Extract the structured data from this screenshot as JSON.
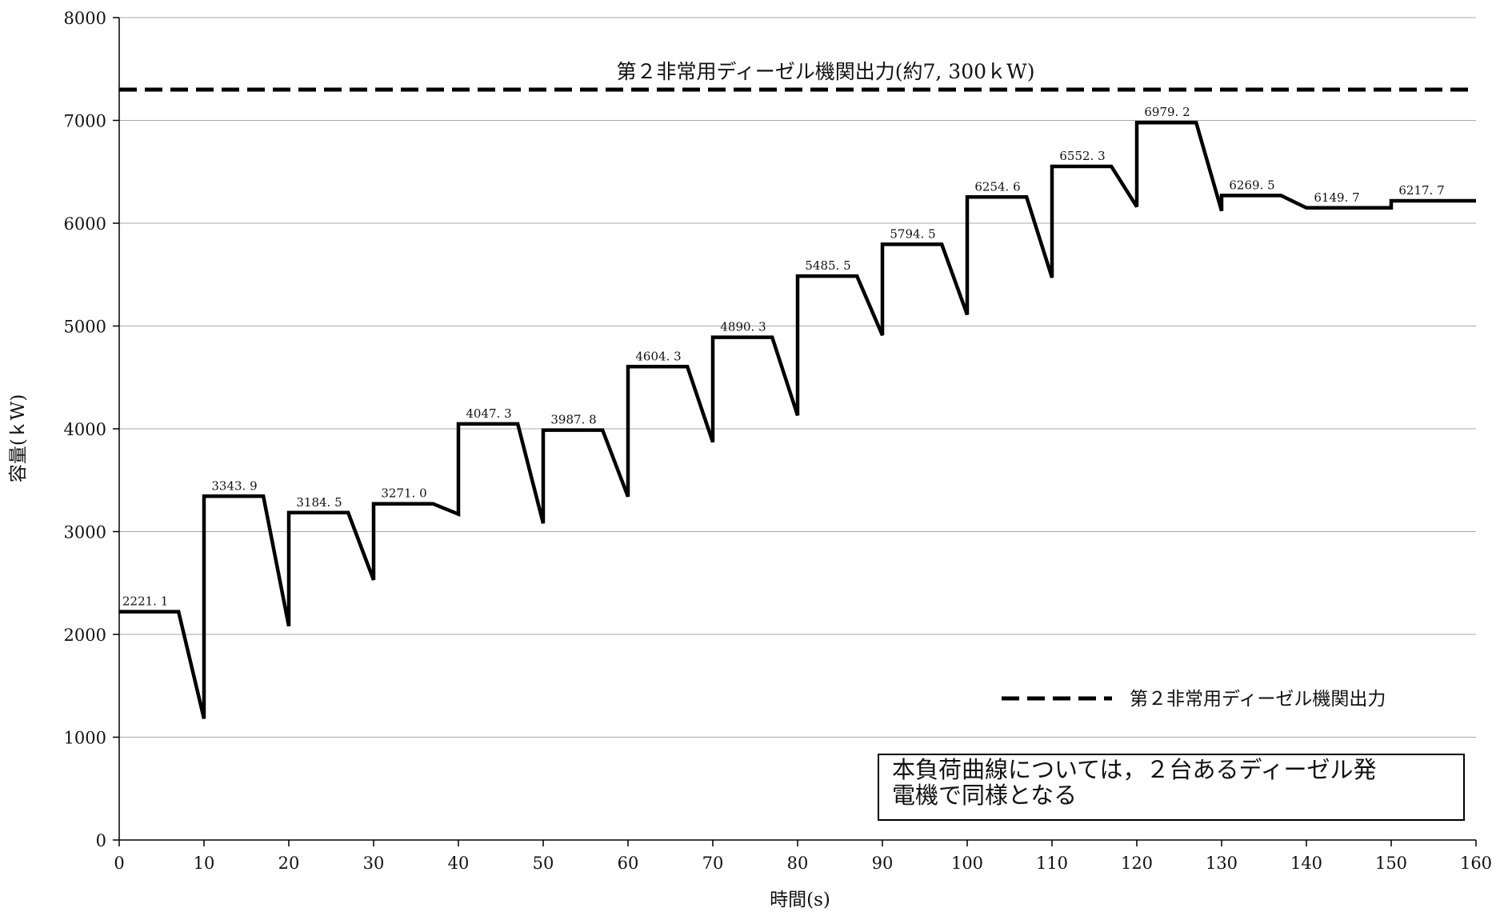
{
  "chart_data": {
    "type": "line",
    "xlabel": "時間(s)",
    "ylabel": "容量(ｋW)",
    "xlim": [
      0,
      160
    ],
    "ylim": [
      0,
      8000
    ],
    "x_ticks": [
      "0",
      "10",
      "20",
      "30",
      "40",
      "50",
      "60",
      "70",
      "80",
      "90",
      "100",
      "110",
      "120",
      "130",
      "140",
      "150",
      "160"
    ],
    "y_ticks": [
      "0",
      "1000",
      "2000",
      "3000",
      "4000",
      "5000",
      "6000",
      "7000",
      "8000"
    ],
    "grid": "horizontal",
    "series": [
      {
        "color": "#000000",
        "points": [
          [
            0,
            2221.1
          ],
          [
            7,
            2221.1
          ],
          [
            10,
            1180
          ],
          [
            10,
            3343.9
          ],
          [
            17,
            3343.9
          ],
          [
            20,
            2080
          ],
          [
            20,
            3184.5
          ],
          [
            27,
            3184.5
          ],
          [
            30,
            2530
          ],
          [
            30,
            3271.0
          ],
          [
            37,
            3271.0
          ],
          [
            40,
            3170
          ],
          [
            40,
            4047.3
          ],
          [
            47,
            4047.3
          ],
          [
            50,
            3080
          ],
          [
            50,
            3987.8
          ],
          [
            57,
            3987.8
          ],
          [
            60,
            3340
          ],
          [
            60,
            4604.3
          ],
          [
            67,
            4604.3
          ],
          [
            70,
            3870
          ],
          [
            70,
            4890.3
          ],
          [
            77,
            4890.3
          ],
          [
            80,
            4130
          ],
          [
            80,
            5485.5
          ],
          [
            87,
            5485.5
          ],
          [
            90,
            4910
          ],
          [
            90,
            5794.5
          ],
          [
            97,
            5794.5
          ],
          [
            100,
            5110
          ],
          [
            100,
            6254.6
          ],
          [
            107,
            6254.6
          ],
          [
            110,
            5470
          ],
          [
            110,
            6552.3
          ],
          [
            117,
            6552.3
          ],
          [
            120,
            6160
          ],
          [
            120,
            6979.2
          ],
          [
            127,
            6979.2
          ],
          [
            130,
            6120
          ],
          [
            130,
            6269.5
          ],
          [
            137,
            6269.5
          ],
          [
            140,
            6149.7
          ],
          [
            150,
            6149.7
          ],
          [
            150,
            6217.7
          ],
          [
            160,
            6217.7
          ]
        ]
      }
    ],
    "peak_labels": [
      {
        "x": 0,
        "y": 2221.1,
        "text": "2221. 1"
      },
      {
        "x": 10,
        "y": 3343.9,
        "text": "3343. 9"
      },
      {
        "x": 20,
        "y": 3184.5,
        "text": "3184. 5"
      },
      {
        "x": 30,
        "y": 3271.0,
        "text": "3271. 0"
      },
      {
        "x": 40,
        "y": 4047.3,
        "text": "4047. 3"
      },
      {
        "x": 50,
        "y": 3987.8,
        "text": "3987. 8"
      },
      {
        "x": 60,
        "y": 4604.3,
        "text": "4604. 3"
      },
      {
        "x": 70,
        "y": 4890.3,
        "text": "4890. 3"
      },
      {
        "x": 80,
        "y": 5485.5,
        "text": "5485. 5"
      },
      {
        "x": 90,
        "y": 5794.5,
        "text": "5794. 5"
      },
      {
        "x": 100,
        "y": 6254.6,
        "text": "6254. 6"
      },
      {
        "x": 110,
        "y": 6552.3,
        "text": "6552. 3"
      },
      {
        "x": 120,
        "y": 6979.2,
        "text": "6979. 2"
      },
      {
        "x": 130,
        "y": 6269.5,
        "text": "6269. 5"
      },
      {
        "x": 140,
        "y": 6149.7,
        "text": "6149. 7"
      },
      {
        "x": 150,
        "y": 6217.7,
        "text": "6217. 7"
      }
    ],
    "reference_line": {
      "y": 7300,
      "label": "第２非常用ディーゼル機関出力(約7, 300ｋW)",
      "style": "dashed",
      "color": "#000000"
    },
    "legend": {
      "position": "bottom-right",
      "entries": [
        {
          "label": "第２非常用ディーゼル機関出力",
          "style": "dashed"
        }
      ]
    },
    "note_lines": [
      "本負荷曲線については，２台あるディーゼル発",
      "電機で同様となる"
    ]
  }
}
